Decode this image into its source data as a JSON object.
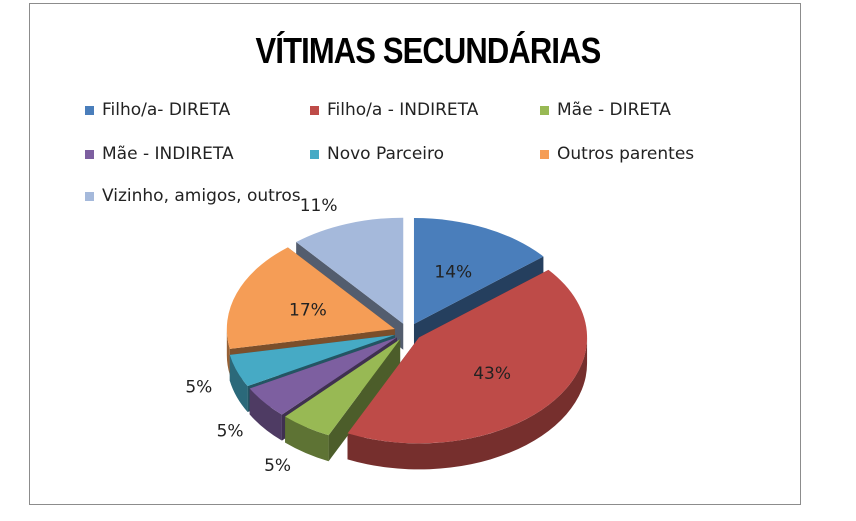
{
  "chart_data": {
    "type": "pie",
    "title": "VÍTIMAS SECUNDÁRIAS",
    "legend_position": "top",
    "three_d": true,
    "slices": [
      {
        "name": "Filho/a- DIRETA",
        "value": 14,
        "label": "14%",
        "color": "#4a7ebb"
      },
      {
        "name": "Filho/a - INDIRETA",
        "value": 43,
        "label": "43%",
        "color": "#be4b48"
      },
      {
        "name": "Mãe - DIRETA",
        "value": 5,
        "label": "5%",
        "color": "#98b954"
      },
      {
        "name": "Mãe - INDIRETA",
        "value": 5,
        "label": "5%",
        "color": "#7d5fa0"
      },
      {
        "name": "Novo Parceiro",
        "value": 5,
        "label": "5%",
        "color": "#46aac5"
      },
      {
        "name": "Outros parentes",
        "value": 17,
        "label": "17%",
        "color": "#f59d56"
      },
      {
        "name": "Vizinho, amigos, outros",
        "value": 11,
        "label": "11%",
        "color": "#a5b9db"
      }
    ]
  }
}
